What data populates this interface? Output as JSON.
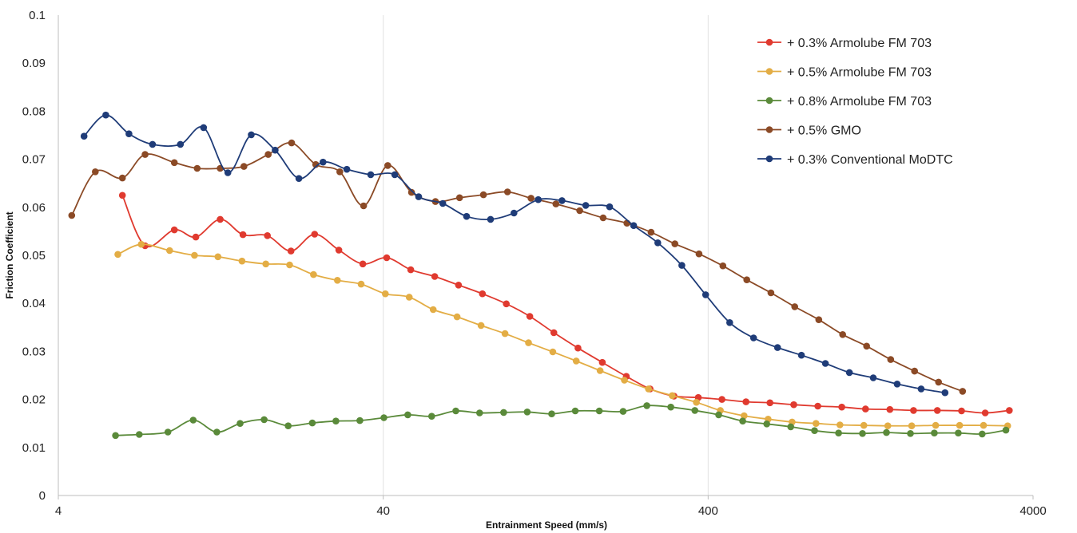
{
  "chart_data": {
    "type": "line",
    "title": "",
    "xlabel": "Entrainment Speed (mm/s)",
    "ylabel": "Friction Coefficient",
    "xscale": "log",
    "xlim": [
      4,
      4000
    ],
    "ylim": [
      0,
      0.1
    ],
    "x_ticks": [
      "4",
      "40",
      "400",
      "4000"
    ],
    "y_ticks": [
      "0",
      "0.01",
      "0.02",
      "0.03",
      "0.04",
      "0.05",
      "0.06",
      "0.07",
      "0.08",
      "0.09",
      "0.1"
    ],
    "grid": "vertical",
    "legend_position": "top-right",
    "series": [
      {
        "name": "+ 0.3% Armolube FM 703",
        "color": "#e03a2f",
        "points": [
          [
            6.3,
            0.0625
          ],
          [
            7.4,
            0.052
          ],
          [
            9.1,
            0.0553
          ],
          [
            10.6,
            0.0538
          ],
          [
            12.6,
            0.0575
          ],
          [
            14.8,
            0.0543
          ],
          [
            17.6,
            0.0541
          ],
          [
            20.8,
            0.0509
          ],
          [
            24.6,
            0.0544
          ],
          [
            29.2,
            0.0511
          ],
          [
            34.6,
            0.0482
          ],
          [
            41,
            0.0495
          ],
          [
            48.6,
            0.047
          ],
          [
            57.6,
            0.0456
          ],
          [
            68.2,
            0.0438
          ],
          [
            80.8,
            0.042
          ],
          [
            95.7,
            0.0399
          ],
          [
            113,
            0.0373
          ],
          [
            134,
            0.0339
          ],
          [
            159,
            0.0307
          ],
          [
            189,
            0.0277
          ],
          [
            224,
            0.0248
          ],
          [
            265,
            0.0222
          ],
          [
            314,
            0.0207
          ],
          [
            373,
            0.0204
          ],
          [
            441,
            0.02
          ],
          [
            523,
            0.0195
          ],
          [
            620,
            0.0193
          ],
          [
            734,
            0.0189
          ],
          [
            870,
            0.0186
          ],
          [
            1031,
            0.0184
          ],
          [
            1220,
            0.018
          ],
          [
            1450,
            0.0179
          ],
          [
            1715,
            0.0177
          ],
          [
            2030,
            0.0177
          ],
          [
            2410,
            0.0176
          ],
          [
            2850,
            0.0172
          ],
          [
            3380,
            0.0177
          ]
        ]
      },
      {
        "name": "+ 0.5% Armolube FM 703",
        "color": "#e3ad45",
        "points": [
          [
            6.1,
            0.0502
          ],
          [
            7.2,
            0.0523
          ],
          [
            8.8,
            0.051
          ],
          [
            10.5,
            0.05
          ],
          [
            12.4,
            0.0497
          ],
          [
            14.7,
            0.0488
          ],
          [
            17.4,
            0.0482
          ],
          [
            20.6,
            0.048
          ],
          [
            24.4,
            0.046
          ],
          [
            28.9,
            0.0448
          ],
          [
            34.2,
            0.044
          ],
          [
            40.6,
            0.042
          ],
          [
            48.1,
            0.0413
          ],
          [
            57,
            0.0387
          ],
          [
            67.5,
            0.0372
          ],
          [
            80,
            0.0354
          ],
          [
            94.8,
            0.0337
          ],
          [
            112,
            0.0318
          ],
          [
            133,
            0.0299
          ],
          [
            157,
            0.028
          ],
          [
            186,
            0.026
          ],
          [
            221,
            0.024
          ],
          [
            262,
            0.0222
          ],
          [
            310,
            0.0208
          ],
          [
            368,
            0.0194
          ],
          [
            436,
            0.0177
          ],
          [
            516,
            0.0166
          ],
          [
            612,
            0.0159
          ],
          [
            725,
            0.0153
          ],
          [
            859,
            0.015
          ],
          [
            1018,
            0.0147
          ],
          [
            1206,
            0.0146
          ],
          [
            1429,
            0.0145
          ],
          [
            1693,
            0.0145
          ],
          [
            2006,
            0.0146
          ],
          [
            2377,
            0.0146
          ],
          [
            2816,
            0.0146
          ],
          [
            3340,
            0.0145
          ]
        ]
      },
      {
        "name": "+ 0.8% Armolube FM 703",
        "color": "#5a8a3a",
        "points": [
          [
            6,
            0.0125
          ],
          [
            7.1,
            0.0127
          ],
          [
            8.7,
            0.0132
          ],
          [
            10.4,
            0.0157
          ],
          [
            12.3,
            0.0132
          ],
          [
            14.5,
            0.015
          ],
          [
            17.2,
            0.0158
          ],
          [
            20.4,
            0.0145
          ],
          [
            24.2,
            0.0151
          ],
          [
            28.6,
            0.0155
          ],
          [
            33.9,
            0.0156
          ],
          [
            40.2,
            0.0162
          ],
          [
            47.6,
            0.0168
          ],
          [
            56.4,
            0.0165
          ],
          [
            66.9,
            0.0176
          ],
          [
            79.2,
            0.0172
          ],
          [
            93.9,
            0.0173
          ],
          [
            111,
            0.0174
          ],
          [
            132,
            0.017
          ],
          [
            156,
            0.0176
          ],
          [
            185,
            0.0176
          ],
          [
            219,
            0.0175
          ],
          [
            259,
            0.0187
          ],
          [
            307,
            0.0184
          ],
          [
            364,
            0.0177
          ],
          [
            431,
            0.0168
          ],
          [
            511,
            0.0155
          ],
          [
            606,
            0.0149
          ],
          [
            718,
            0.0143
          ],
          [
            850,
            0.0135
          ],
          [
            1008,
            0.013
          ],
          [
            1194,
            0.0129
          ],
          [
            1415,
            0.0131
          ],
          [
            1677,
            0.0129
          ],
          [
            1987,
            0.013
          ],
          [
            2354,
            0.013
          ],
          [
            2789,
            0.0128
          ],
          [
            3300,
            0.0136
          ]
        ]
      },
      {
        "name": "+ 0.5% GMO",
        "color": "#8b4a26",
        "points": [
          [
            4.4,
            0.0583
          ],
          [
            5.2,
            0.0674
          ],
          [
            6.3,
            0.0661
          ],
          [
            7.4,
            0.071
          ],
          [
            9.1,
            0.0693
          ],
          [
            10.7,
            0.0681
          ],
          [
            12.6,
            0.0681
          ],
          [
            14.9,
            0.0685
          ],
          [
            17.7,
            0.071
          ],
          [
            20.9,
            0.0734
          ],
          [
            24.8,
            0.0689
          ],
          [
            29.4,
            0.0674
          ],
          [
            34.8,
            0.0603
          ],
          [
            41.3,
            0.0687
          ],
          [
            48.9,
            0.0631
          ],
          [
            57.9,
            0.0612
          ],
          [
            68.7,
            0.062
          ],
          [
            81.4,
            0.0626
          ],
          [
            96.5,
            0.0632
          ],
          [
            114,
            0.0619
          ],
          [
            136,
            0.0607
          ],
          [
            161,
            0.0593
          ],
          [
            190,
            0.0578
          ],
          [
            225,
            0.0567
          ],
          [
            267,
            0.0548
          ],
          [
            316,
            0.0524
          ],
          [
            375,
            0.0503
          ],
          [
            444,
            0.0478
          ],
          [
            526,
            0.0449
          ],
          [
            624,
            0.0422
          ],
          [
            739,
            0.0393
          ],
          [
            876,
            0.0366
          ],
          [
            1038,
            0.0335
          ],
          [
            1230,
            0.0311
          ],
          [
            1458,
            0.0283
          ],
          [
            1727,
            0.0259
          ],
          [
            2047,
            0.0236
          ],
          [
            2428,
            0.0217
          ]
        ]
      },
      {
        "name": "+ 0.3% Conventional MoDTC",
        "color": "#1f3c78",
        "points": [
          [
            4.8,
            0.0748
          ],
          [
            5.6,
            0.0792
          ],
          [
            6.6,
            0.0753
          ],
          [
            7.8,
            0.0731
          ],
          [
            9.5,
            0.0731
          ],
          [
            11.2,
            0.0766
          ],
          [
            13.3,
            0.0672
          ],
          [
            15.7,
            0.0751
          ],
          [
            18.6,
            0.0719
          ],
          [
            22,
            0.066
          ],
          [
            26.1,
            0.0694
          ],
          [
            30.9,
            0.0679
          ],
          [
            36.6,
            0.0668
          ],
          [
            43.4,
            0.0668
          ],
          [
            51.4,
            0.0622
          ],
          [
            61,
            0.0608
          ],
          [
            72.2,
            0.0581
          ],
          [
            85.6,
            0.0575
          ],
          [
            101,
            0.0588
          ],
          [
            120,
            0.0616
          ],
          [
            142,
            0.0614
          ],
          [
            168,
            0.0604
          ],
          [
            199,
            0.0601
          ],
          [
            236,
            0.0562
          ],
          [
            280,
            0.0526
          ],
          [
            332,
            0.0479
          ],
          [
            393,
            0.0418
          ],
          [
            466,
            0.036
          ],
          [
            552,
            0.0328
          ],
          [
            654,
            0.0308
          ],
          [
            775,
            0.0292
          ],
          [
            918,
            0.0275
          ],
          [
            1088,
            0.0256
          ],
          [
            1289,
            0.0245
          ],
          [
            1527,
            0.0232
          ],
          [
            1809,
            0.0222
          ],
          [
            2143,
            0.0214
          ]
        ]
      }
    ]
  }
}
